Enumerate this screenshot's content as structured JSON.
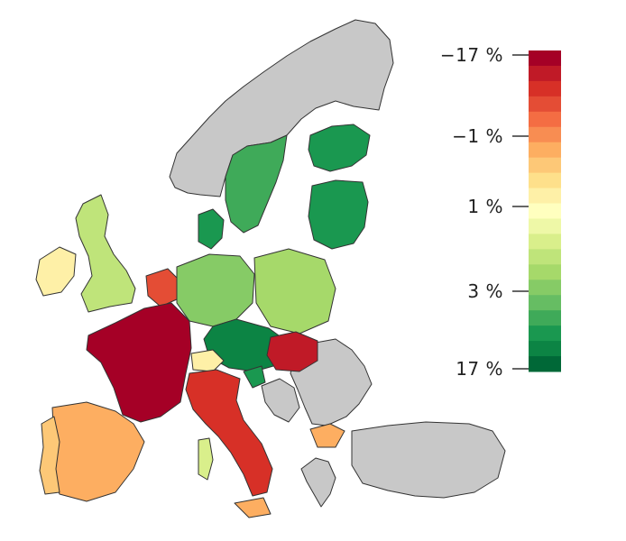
{
  "legend": {
    "labels": [
      "−17 %",
      "−1 %",
      "1 %",
      "3 %",
      "17 %"
    ],
    "colors": [
      "#a50026",
      "#c01a27",
      "#d73027",
      "#e44d35",
      "#f46d43",
      "#f88d52",
      "#fdae61",
      "#fdc877",
      "#fee08b",
      "#fef0a7",
      "#ffffbf",
      "#eef8a7",
      "#d9ef8b",
      "#bfe47a",
      "#a6d96a",
      "#86cb66",
      "#66bd63",
      "#3faa59",
      "#1a9850",
      "#0c8444",
      "#006837"
    ],
    "null_color": "#c8c8c8"
  }
}
